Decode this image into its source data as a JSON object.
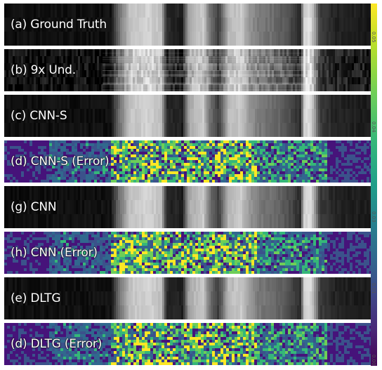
{
  "panels": [
    {
      "label": "(a) Ground Truth",
      "kind": "gray"
    },
    {
      "label": "(b) 9x Und.",
      "kind": "aliased"
    },
    {
      "label": "(c) CNN-S",
      "kind": "gray"
    },
    {
      "label": "(d) CNN-S (Error)",
      "kind": "error"
    },
    {
      "label": "(g) CNN",
      "kind": "gray"
    },
    {
      "label": "(h) CNN (Error)",
      "kind": "error"
    },
    {
      "label": "(e) DLTG",
      "kind": "gray"
    },
    {
      "label": "(d) DLTG (Error)",
      "kind": "error"
    }
  ],
  "colorbar": {
    "ticks": [
      "0.05",
      "0.04",
      "0.03",
      "0.01",
      "0.00"
    ],
    "colors": [
      "#fde725",
      "#35b779",
      "#31688e",
      "#440154"
    ]
  }
}
